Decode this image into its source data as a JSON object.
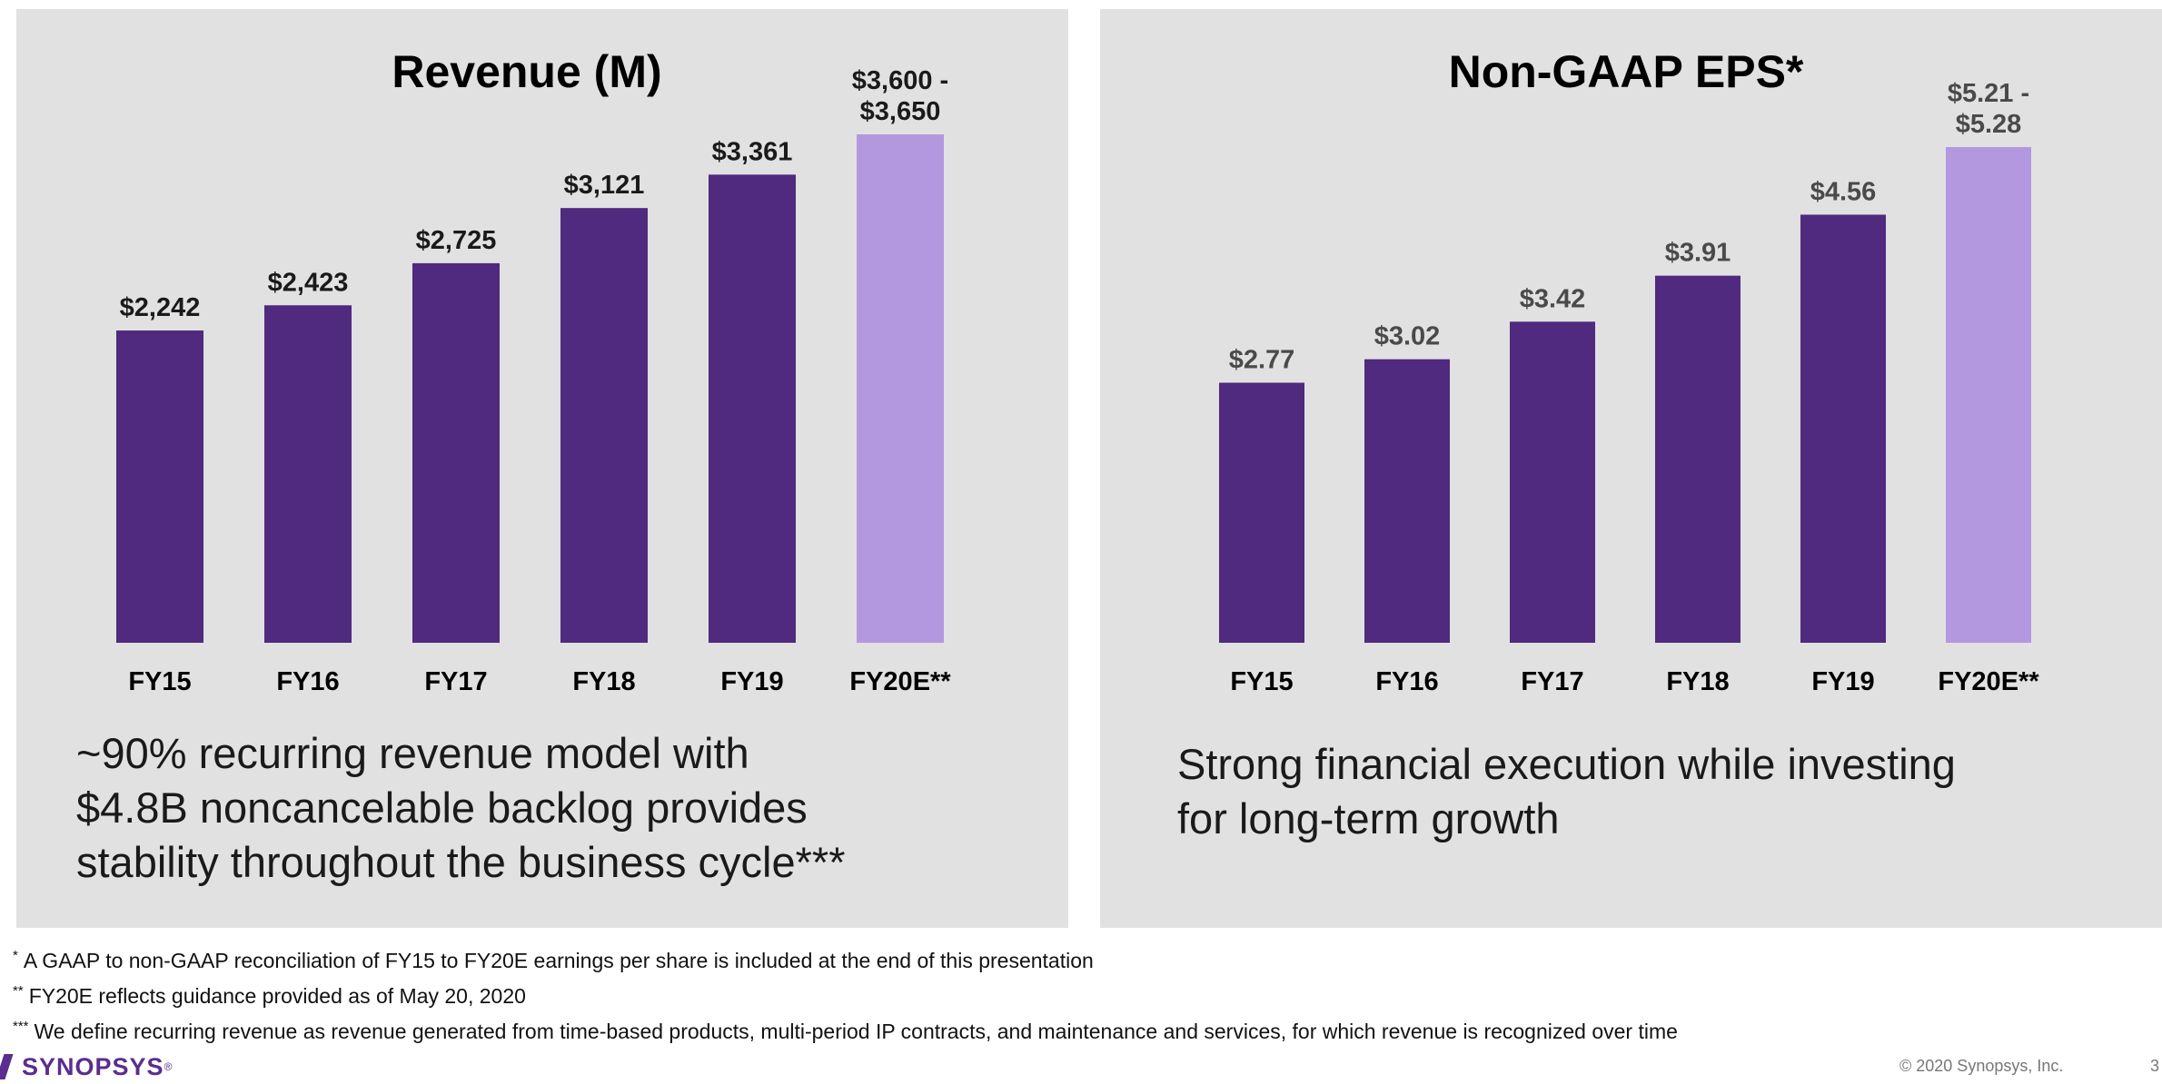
{
  "colors": {
    "actual": "#4f2a7f",
    "estimate": "#b398e0",
    "panel_bg": "#e1e1e1",
    "brand": "#5b2d8e"
  },
  "chart_data": [
    {
      "type": "bar",
      "title": "Revenue (M)",
      "xlabel": "",
      "ylabel": "",
      "categories": [
        "FY15",
        "FY16",
        "FY17",
        "FY18",
        "FY19",
        "FY20E**"
      ],
      "values": [
        2242,
        2423,
        2725,
        3121,
        3361,
        3650
      ],
      "estimate_range": [
        3600,
        3650
      ],
      "labels": [
        "$2,242",
        "$2,423",
        "$2,725",
        "$3,121",
        "$3,361",
        "$3,600 -\n$3,650"
      ],
      "ylim": [
        0,
        3700
      ],
      "grid": false,
      "legend": "none"
    },
    {
      "type": "bar",
      "title": "Non-GAAP EPS*",
      "xlabel": "",
      "ylabel": "",
      "categories": [
        "FY15",
        "FY16",
        "FY17",
        "FY18",
        "FY19",
        "FY20E**"
      ],
      "values": [
        2.77,
        3.02,
        3.42,
        3.91,
        4.56,
        5.28
      ],
      "estimate_range": [
        5.21,
        5.28
      ],
      "labels": [
        "$2.77",
        "$3.02",
        "$3.42",
        "$3.91",
        "$4.56",
        "$5.21 -\n$5.28"
      ],
      "ylim": [
        0,
        5.8
      ],
      "grid": false,
      "legend": "none"
    }
  ],
  "captions": {
    "left": "~90% recurring revenue model with\n$4.8B noncancelable backlog provides\nstability throughout the business cycle***",
    "right": "Strong financial execution while investing\nfor long-term growth"
  },
  "footnotes": [
    {
      "mark": "*",
      "text": "A GAAP to non-GAAP reconciliation of FY15 to FY20E earnings per share is included at the end of this presentation"
    },
    {
      "mark": "**",
      "text": "FY20E reflects guidance provided as of May 20, 2020"
    },
    {
      "mark": "***",
      "text": "We define recurring revenue as revenue generated from time-based products, multi-period IP contracts, and maintenance and services, for which revenue is recognized over time"
    }
  ],
  "footer": {
    "logo_text": "SYNOPSYS",
    "logo_mark": "®",
    "copyright": "© 2020 Synopsys, Inc.",
    "page_number": "3"
  }
}
